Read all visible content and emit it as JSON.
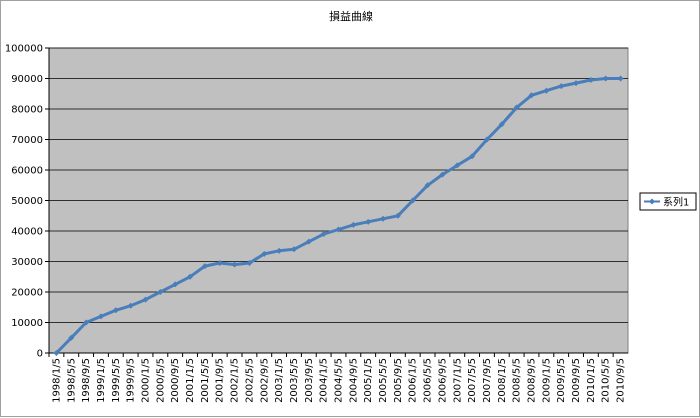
{
  "chart_data": {
    "type": "line",
    "title": "損益曲線",
    "xlabel": "",
    "ylabel": "",
    "ylim": [
      0,
      100000
    ],
    "y_ticks": [
      0,
      10000,
      20000,
      30000,
      40000,
      50000,
      60000,
      70000,
      80000,
      90000,
      100000
    ],
    "x_tick_labels": [
      "1998/1/5",
      "1998/5/5",
      "1998/9/5",
      "1999/1/5",
      "1999/5/5",
      "1999/9/5",
      "2000/1/5",
      "2000/5/5",
      "2000/9/5",
      "2001/1/5",
      "2001/5/5",
      "2001/9/5",
      "2002/1/5",
      "2002/5/5",
      "2002/9/5",
      "2003/1/5",
      "2003/5/5",
      "2003/9/5",
      "2004/1/5",
      "2004/5/5",
      "2004/9/5",
      "2005/1/5",
      "2005/5/5",
      "2005/9/5",
      "2006/1/5",
      "2006/5/5",
      "2006/9/5",
      "2007/1/5",
      "2007/5/5",
      "2007/9/5",
      "2008/1/5",
      "2008/5/5",
      "2008/9/5",
      "2009/1/5",
      "2009/5/5",
      "2009/9/5",
      "2010/1/5",
      "2010/5/5",
      "2010/9/5"
    ],
    "grid": "horizontal",
    "plot_background": "#c0c0c0",
    "legend_position": "right",
    "series": [
      {
        "name": "系列1",
        "color": "#4a7ebb",
        "values": [
          0,
          5000,
          10000,
          12000,
          14000,
          15500,
          17500,
          20000,
          22500,
          25000,
          28500,
          29500,
          29000,
          29500,
          32500,
          33500,
          34000,
          36500,
          39000,
          40500,
          42000,
          43000,
          44000,
          45000,
          50000,
          55000,
          58500,
          61500,
          64500,
          70000,
          75000,
          80500,
          84500,
          86000,
          87500,
          88500,
          89500,
          90000,
          90000
        ]
      }
    ]
  }
}
